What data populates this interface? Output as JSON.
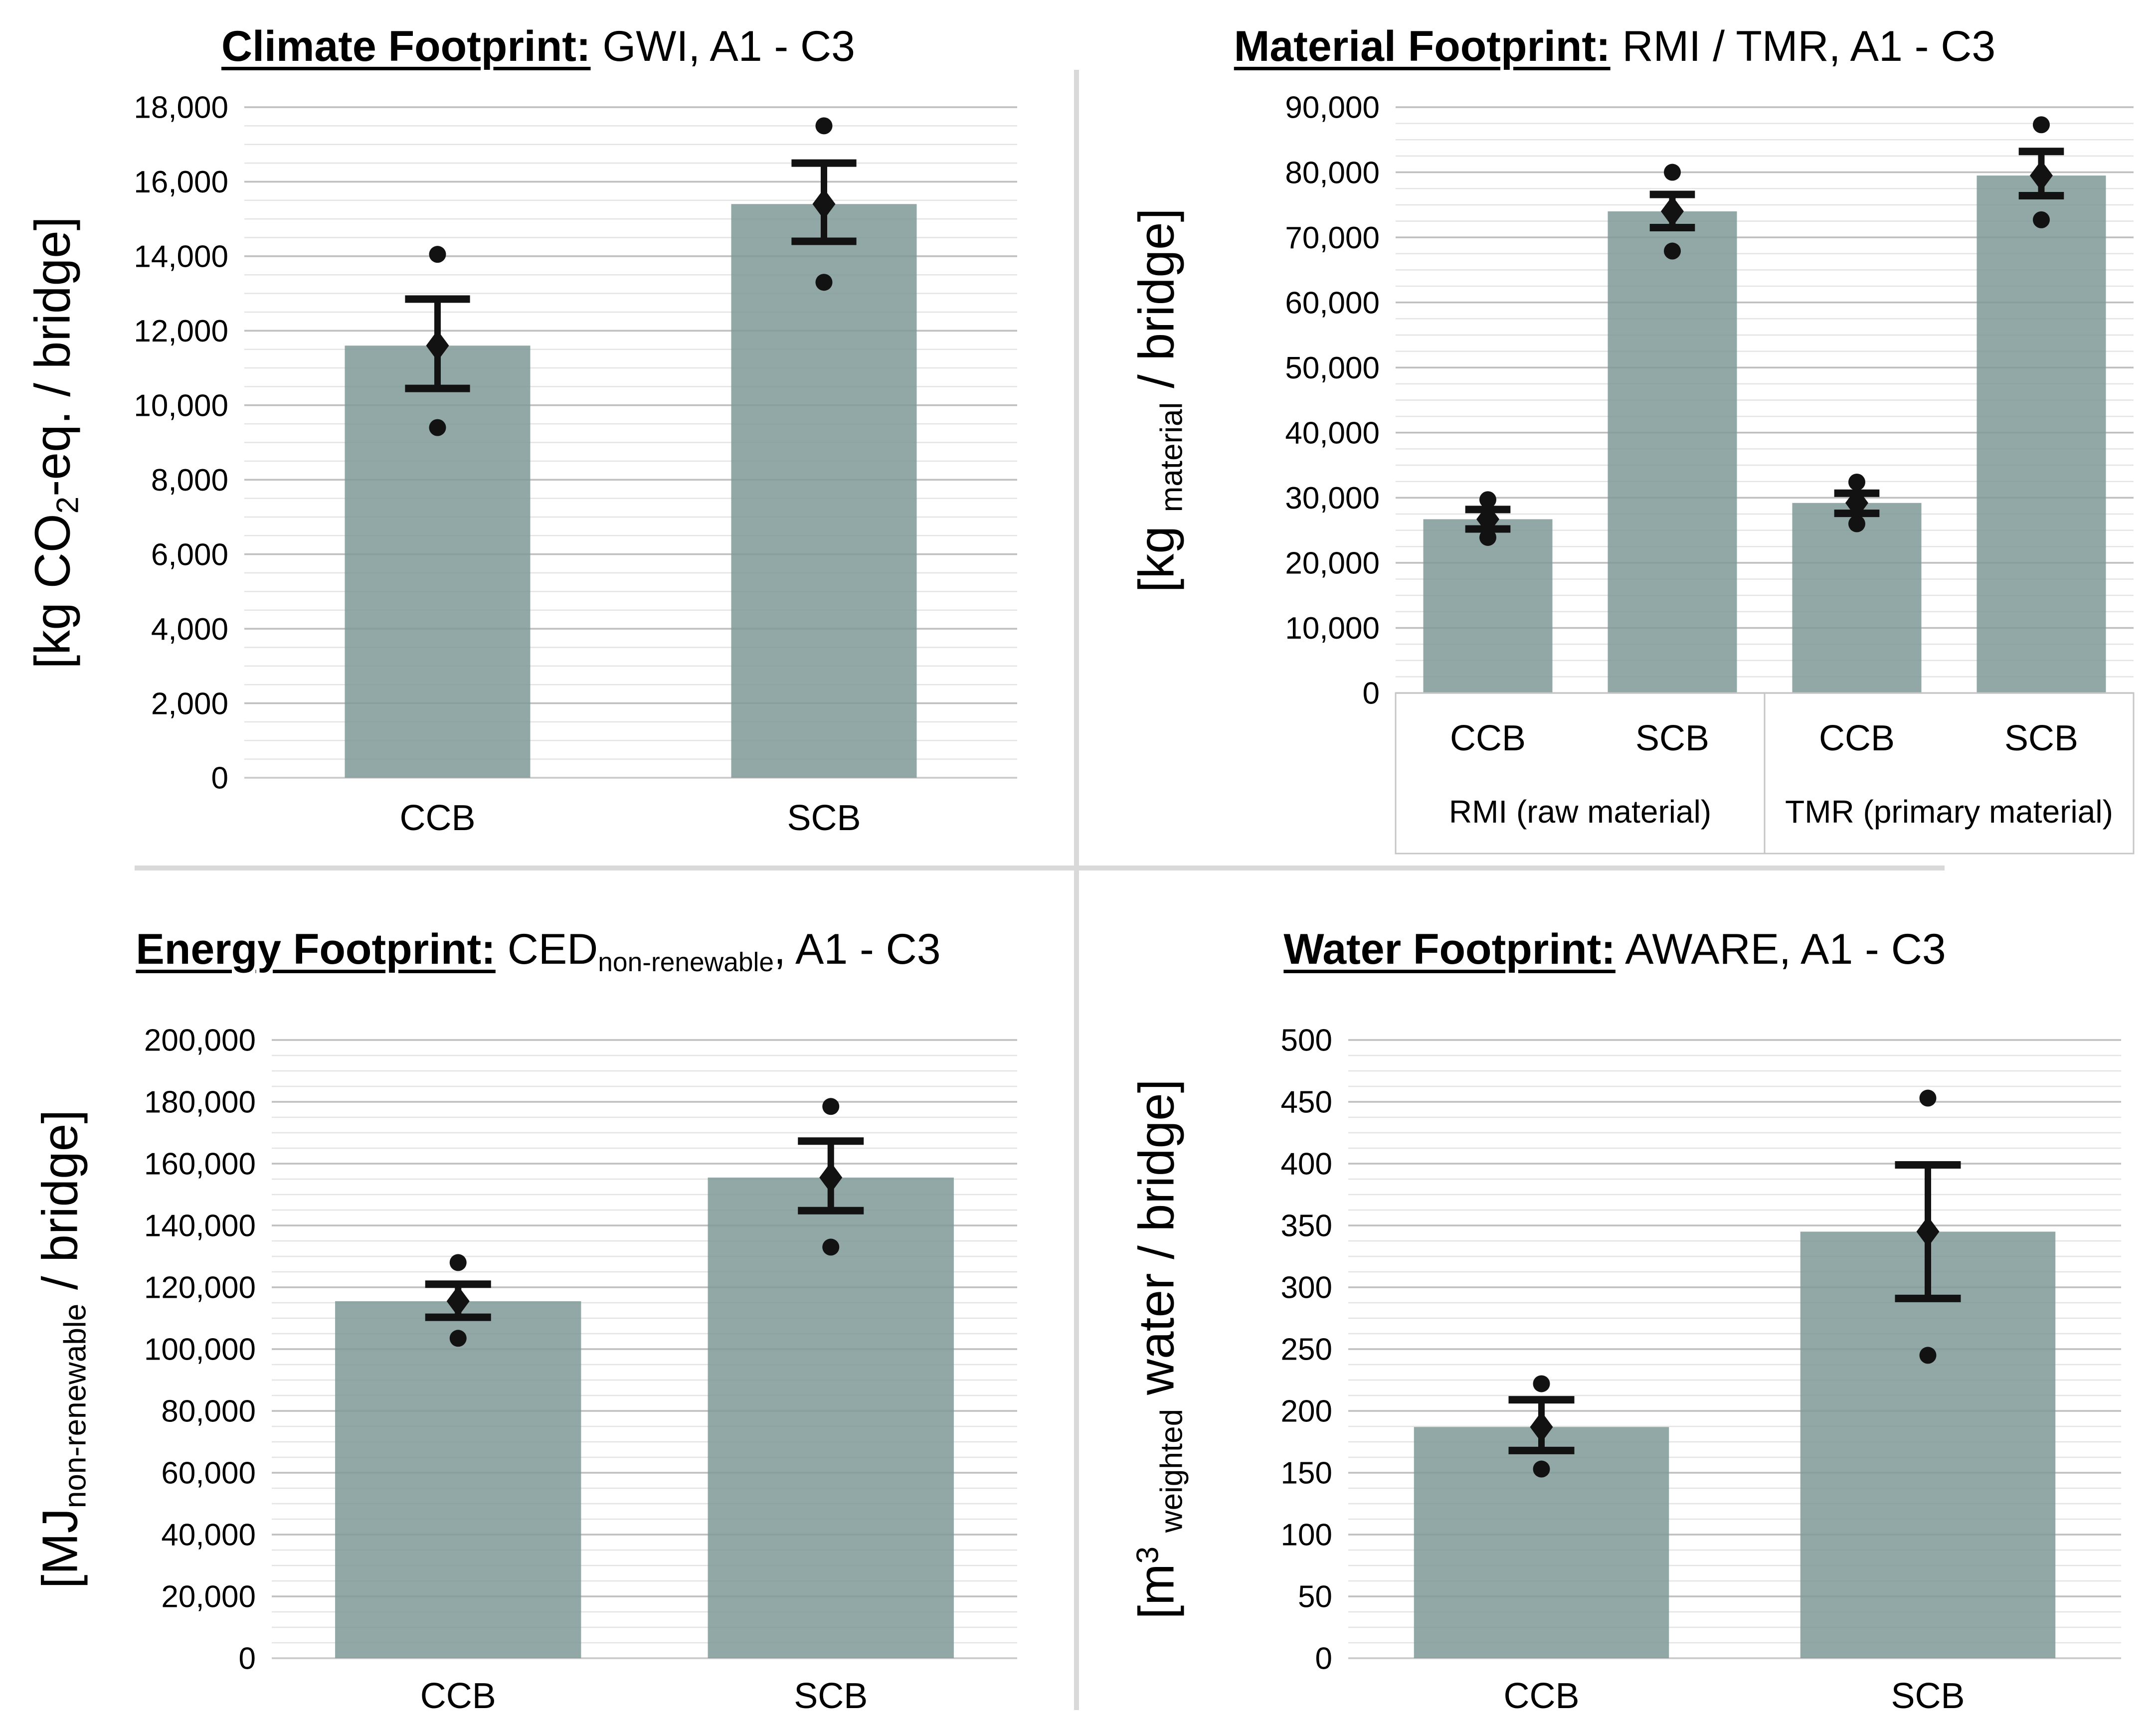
{
  "styles": {
    "background": "#FFFFFF",
    "bar_color": "#7E9997",
    "bar_opacity": 0.85,
    "grid_major_color": "#BFBFBF",
    "grid_minor_color": "#E4E4E4",
    "axis_line_color": "#C9C9C9",
    "marker_color": "#121212",
    "divider_color": "#D9D9D9",
    "label_box_color": "#C6C6C6",
    "text_color": "#000000"
  },
  "chart_data": [
    {
      "type": "bar",
      "id": "climate",
      "title_strong": "Climate Footprint:",
      "title_rest_segments": [
        {
          "text": " GWI, A1 - C3"
        }
      ],
      "ylabel_segments": [
        {
          "text": "[kg CO"
        },
        {
          "sub": "2"
        },
        {
          "text": "-eq. / bridge]"
        }
      ],
      "ylim": [
        0,
        18000
      ],
      "major_unit": 2000,
      "minor_unit": 500,
      "grid": "on",
      "legend": null,
      "ytick_labels": [
        "0",
        "2,000",
        "4,000",
        "6,000",
        "8,000",
        "10,000",
        "12,000",
        "14,000",
        "16,000",
        "18,000"
      ],
      "categories": [
        "CCB",
        "SCB"
      ],
      "group_labels": null,
      "bars": [
        {
          "label": "CCB",
          "value": 11600,
          "err_low": 10450,
          "err_high": 12850,
          "points": [
            14050,
            11600,
            9400
          ]
        },
        {
          "label": "SCB",
          "value": 15400,
          "err_low": 14400,
          "err_high": 16500,
          "points": [
            17500,
            15400,
            13300
          ]
        }
      ]
    },
    {
      "type": "bar",
      "id": "material",
      "title_strong": "Material Footprint:",
      "title_rest_segments": [
        {
          "text": " RMI / TMR, A1 - C3"
        }
      ],
      "ylabel_segments": [
        {
          "text": "[kg "
        },
        {
          "sub": "material"
        },
        {
          "text": " / bridge]"
        }
      ],
      "ylim": [
        0,
        90000
      ],
      "major_unit": 10000,
      "minor_unit": 2500,
      "grid": "on",
      "legend": null,
      "ytick_labels": [
        "0",
        "10,000",
        "20,000",
        "30,000",
        "40,000",
        "50,000",
        "60,000",
        "70,000",
        "80,000",
        "90,000"
      ],
      "categories": [
        "CCB",
        "SCB",
        "CCB",
        "SCB"
      ],
      "group_labels": [
        "RMI (raw material)",
        "TMR (primary material)"
      ],
      "bars": [
        {
          "label": "CCB",
          "value": 26700,
          "err_low": 25200,
          "err_high": 28200,
          "points": [
            29700,
            26700,
            23900
          ]
        },
        {
          "label": "SCB",
          "value": 74000,
          "err_low": 71500,
          "err_high": 76600,
          "points": [
            80000,
            74000,
            67900
          ]
        },
        {
          "label": "CCB",
          "value": 29200,
          "err_low": 27600,
          "err_high": 30700,
          "points": [
            32400,
            29200,
            26000
          ]
        },
        {
          "label": "SCB",
          "value": 79500,
          "err_low": 76400,
          "err_high": 83200,
          "points": [
            87300,
            79500,
            72700
          ]
        }
      ]
    },
    {
      "type": "bar",
      "id": "energy",
      "title_strong": "Energy Footprint:",
      "title_rest_segments": [
        {
          "text": " CED"
        },
        {
          "sub": "non-renewable"
        },
        {
          "text": ", A1 - C3"
        }
      ],
      "ylabel_segments": [
        {
          "text": "[MJ"
        },
        {
          "sub": "non-renewable"
        },
        {
          "text": " / bridge]"
        }
      ],
      "ylim": [
        0,
        200000
      ],
      "major_unit": 20000,
      "minor_unit": 5000,
      "grid": "on",
      "legend": null,
      "ytick_labels": [
        "0",
        "20,000",
        "40,000",
        "60,000",
        "80,000",
        "100,000",
        "120,000",
        "140,000",
        "160,000",
        "180,000",
        "200,000"
      ],
      "categories": [
        "CCB",
        "SCB"
      ],
      "group_labels": null,
      "bars": [
        {
          "label": "CCB",
          "value": 115500,
          "err_low": 110300,
          "err_high": 121000,
          "points": [
            128000,
            115500,
            103500
          ]
        },
        {
          "label": "SCB",
          "value": 155500,
          "err_low": 144800,
          "err_high": 167300,
          "points": [
            178500,
            155500,
            133000
          ]
        }
      ]
    },
    {
      "type": "bar",
      "id": "water",
      "title_strong": "Water Footprint:",
      "title_rest_segments": [
        {
          "text": " AWARE, A1 - C3"
        }
      ],
      "ylabel_segments": [
        {
          "text": "[m"
        },
        {
          "sup": "3"
        },
        {
          "text": " "
        },
        {
          "sub": "weighted"
        },
        {
          "text": " water / bridge]"
        }
      ],
      "ylim": [
        0,
        500
      ],
      "major_unit": 50,
      "minor_unit": 12.5,
      "grid": "on",
      "legend": null,
      "ytick_labels": [
        "0",
        "50",
        "100",
        "150",
        "200",
        "250",
        "300",
        "350",
        "400",
        "450",
        "500"
      ],
      "categories": [
        "CCB",
        "SCB"
      ],
      "group_labels": null,
      "bars": [
        {
          "label": "CCB",
          "value": 187,
          "err_low": 168,
          "err_high": 209,
          "points": [
            222,
            187,
            153
          ]
        },
        {
          "label": "SCB",
          "value": 345,
          "err_low": 291,
          "err_high": 399,
          "points": [
            453,
            345,
            245
          ]
        }
      ]
    }
  ]
}
